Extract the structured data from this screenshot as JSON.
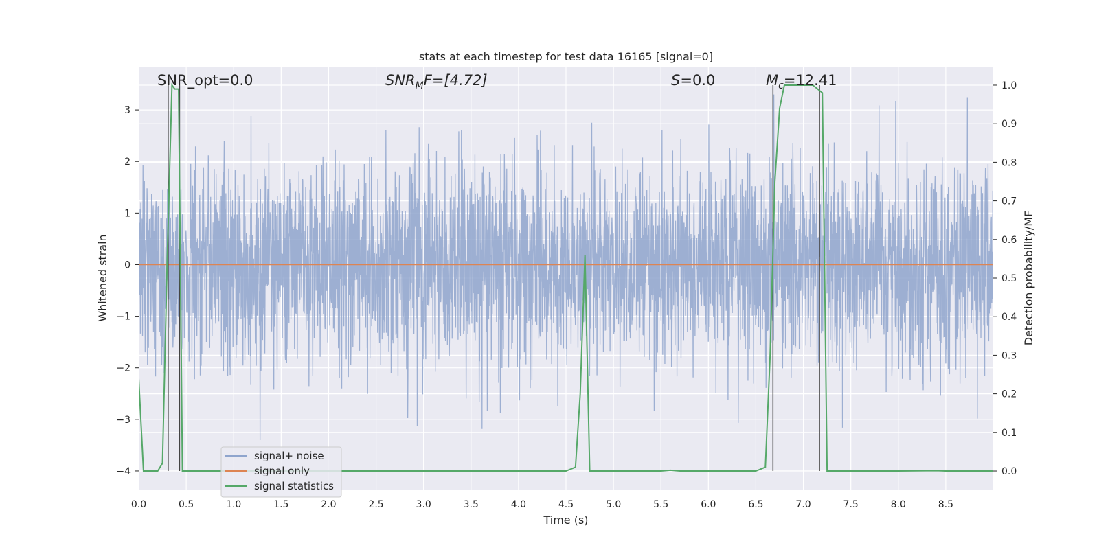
{
  "chart_data": {
    "type": "line",
    "title": "stats at each timestep for test data 16165 [signal=0]",
    "xlabel": "Time (s)",
    "ylabel_left": "Whitened strain",
    "ylabel_right": "Detection probability/MF",
    "xlim": [
      0,
      9.0
    ],
    "ylim_left": [
      -4.36,
      3.84
    ],
    "ylim_right": [
      -0.048,
      1.048
    ],
    "x_ticks": [
      "0.0",
      "0.5",
      "1.0",
      "1.5",
      "2.0",
      "2.5",
      "3.0",
      "3.5",
      "4.0",
      "4.5",
      "5.0",
      "5.5",
      "6.0",
      "6.5",
      "7.0",
      "7.5",
      "8.0",
      "8.5"
    ],
    "y_ticks_left": [
      "3",
      "2",
      "1",
      "0",
      "−1",
      "−2",
      "−3",
      "−4"
    ],
    "y_ticks_right": [
      "1.0",
      "0.9",
      "0.8",
      "0.7",
      "0.6",
      "0.5",
      "0.4",
      "0.3",
      "0.2",
      "0.1",
      "0.0"
    ],
    "grid": true,
    "legend_position": "lower-left",
    "annotations": {
      "snr_opt": "SNR_opt=0.0",
      "snr_mf_base": "SNR",
      "snr_mf_sub": "M",
      "snr_mf_rest": "F=[4.72]",
      "s_sym": "S",
      "s_val": "=0.0",
      "mc_base": "M",
      "mc_sub": "c",
      "mc_val": "=12.41"
    },
    "series": [
      {
        "name": "signal+ noise",
        "color": "#8fa5cd",
        "description_stats": {
          "mean": 0,
          "sigma": 0.95,
          "min": -3.6,
          "max": 3.3
        }
      },
      {
        "name": "signal only",
        "color": "#dd8452",
        "values_constant": 0
      },
      {
        "name": "signal statistics",
        "color": "#55a868",
        "x": [
          0.0,
          0.05,
          0.1,
          0.2,
          0.25,
          0.3,
          0.35,
          0.38,
          0.42,
          0.46,
          0.5,
          0.6,
          4.5,
          4.6,
          4.65,
          4.7,
          4.75,
          4.8,
          5.0,
          5.5,
          5.6,
          5.7,
          6.5,
          6.6,
          6.65,
          6.7,
          6.75,
          6.8,
          6.9,
          7.0,
          7.1,
          7.2,
          7.25,
          7.3,
          8.0,
          8.4,
          8.5,
          9.0
        ],
        "values": [
          0.24,
          0.0,
          0.0,
          0.0,
          0.02,
          0.55,
          1.0,
          0.99,
          0.99,
          0.0,
          0.0,
          0.0,
          0.0,
          0.01,
          0.2,
          0.56,
          0.0,
          0.0,
          0.0,
          0.0,
          0.002,
          0.0,
          0.0,
          0.01,
          0.3,
          0.75,
          0.94,
          1.0,
          1.0,
          1.0,
          1.0,
          0.98,
          0.0,
          0.0,
          0.0,
          0.001,
          0.0,
          0.0
        ]
      }
    ],
    "vertical_markers_x": [
      0.31,
      0.43,
      6.68,
      7.17
    ]
  }
}
